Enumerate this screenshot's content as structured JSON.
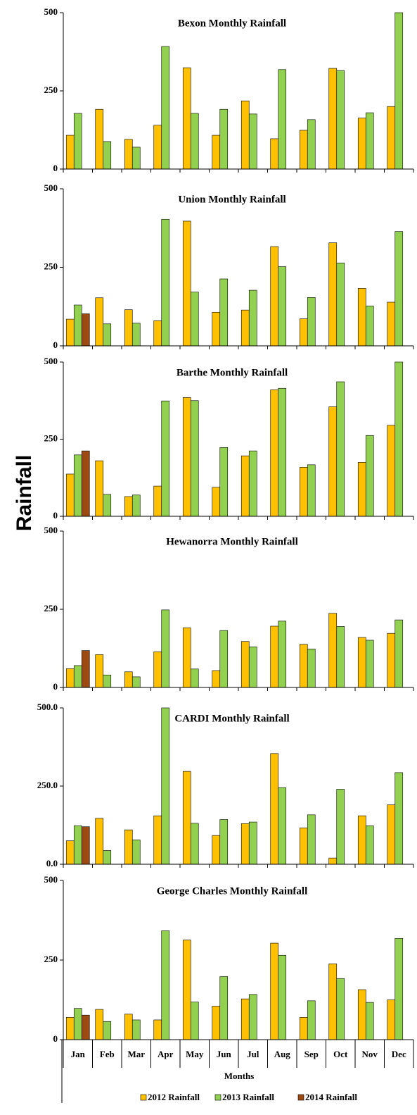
{
  "ylabel": "Rainfall",
  "chart_data": [
    {
      "type": "bar",
      "title": "Bexon Monthly Rainfall",
      "ylim": [
        0,
        500
      ],
      "yticks": [
        0,
        250,
        500
      ],
      "series": [
        {
          "color": "#ffc000",
          "values": [
            108,
            191,
            95,
            140,
            324,
            108,
            218,
            97,
            124,
            322,
            163,
            200
          ]
        },
        {
          "color": "#92d050",
          "values": [
            178,
            88,
            70,
            392,
            178,
            191,
            176,
            318,
            158,
            315,
            180,
            500
          ]
        }
      ]
    },
    {
      "type": "bar",
      "title": "Union Monthly Rainfall",
      "ylim": [
        0,
        500
      ],
      "yticks": [
        0,
        250,
        500
      ],
      "series": [
        {
          "color": "#ffc000",
          "values": [
            85,
            153,
            115,
            80,
            397,
            107,
            114,
            316,
            86,
            328,
            183,
            139
          ]
        },
        {
          "color": "#92d050",
          "values": [
            130,
            70,
            72,
            403,
            171,
            213,
            177,
            252,
            154,
            264,
            127,
            364
          ]
        },
        {
          "color": "#9c4a12",
          "values": [
            102,
            null,
            null,
            null,
            null,
            null,
            null,
            null,
            null,
            null,
            null,
            null
          ]
        }
      ]
    },
    {
      "type": "bar",
      "title": "Barthe Monthly Rainfall",
      "ylim": [
        0,
        500
      ],
      "yticks": [
        0,
        250,
        500
      ],
      "series": [
        {
          "color": "#ffc000",
          "values": [
            137,
            180,
            64,
            98,
            385,
            94,
            196,
            410,
            159,
            355,
            175,
            295
          ]
        },
        {
          "color": "#92d050",
          "values": [
            199,
            71,
            69,
            374,
            375,
            223,
            212,
            415,
            167,
            436,
            262,
            500
          ]
        },
        {
          "color": "#9c4a12",
          "values": [
            212,
            null,
            null,
            null,
            null,
            null,
            null,
            null,
            null,
            null,
            null,
            null
          ]
        }
      ]
    },
    {
      "type": "bar",
      "title": "Hewanorra  Monthly Rainfall",
      "ylim": [
        0,
        500
      ],
      "yticks": [
        0,
        250,
        500
      ],
      "series": [
        {
          "color": "#ffc000",
          "values": [
            60,
            105,
            50,
            114,
            191,
            54,
            147,
            196,
            138,
            237,
            160,
            173
          ]
        },
        {
          "color": "#92d050",
          "values": [
            70,
            40,
            34,
            248,
            59,
            182,
            130,
            212,
            123,
            195,
            151,
            216
          ]
        },
        {
          "color": "#9c4a12",
          "values": [
            118,
            null,
            null,
            null,
            null,
            null,
            null,
            null,
            null,
            null,
            null,
            null
          ]
        }
      ]
    },
    {
      "type": "bar",
      "title": "CARDI Monthly Rainfall",
      "ylim": [
        0,
        500
      ],
      "yticks": [
        {
          "value": 0,
          "label": "0.0"
        },
        {
          "value": 250,
          "label": "250.0"
        },
        {
          "value": 500,
          "label": "500.0"
        }
      ],
      "series": [
        {
          "color": "#ffc000",
          "values": [
            75,
            147,
            110,
            155,
            297,
            92,
            130,
            354,
            116,
            20,
            155,
            190
          ]
        },
        {
          "color": "#92d050",
          "values": [
            123,
            44,
            78,
            500,
            131,
            143,
            135,
            245,
            158,
            240,
            123,
            293
          ]
        },
        {
          "color": "#9c4a12",
          "values": [
            120,
            null,
            null,
            null,
            null,
            null,
            null,
            null,
            null,
            null,
            null,
            null
          ]
        }
      ]
    },
    {
      "type": "bar",
      "title": "George Charles Monthly Rainfall",
      "ylim": [
        0,
        500
      ],
      "yticks": [
        0,
        250,
        500
      ],
      "xlabel": "Months",
      "categories": [
        "Jan",
        "Feb",
        "Mar",
        "Apr",
        "May",
        "Jun",
        "Jul",
        "Aug",
        "Sep",
        "Oct",
        "Nov",
        "Dec"
      ],
      "series": [
        {
          "name": "2012 Rainfall",
          "color": "#ffc000",
          "values": [
            70,
            95,
            80,
            62,
            313,
            105,
            128,
            303,
            70,
            238,
            157,
            125
          ]
        },
        {
          "name": "2013 Rainfall",
          "color": "#92d050",
          "values": [
            98,
            57,
            62,
            342,
            118,
            198,
            142,
            265,
            122,
            192,
            117,
            318
          ]
        },
        {
          "name": "2014 Rainfall",
          "color": "#9c4a12",
          "values": [
            77,
            null,
            null,
            null,
            null,
            null,
            null,
            null,
            null,
            null,
            null,
            null
          ]
        }
      ]
    }
  ]
}
